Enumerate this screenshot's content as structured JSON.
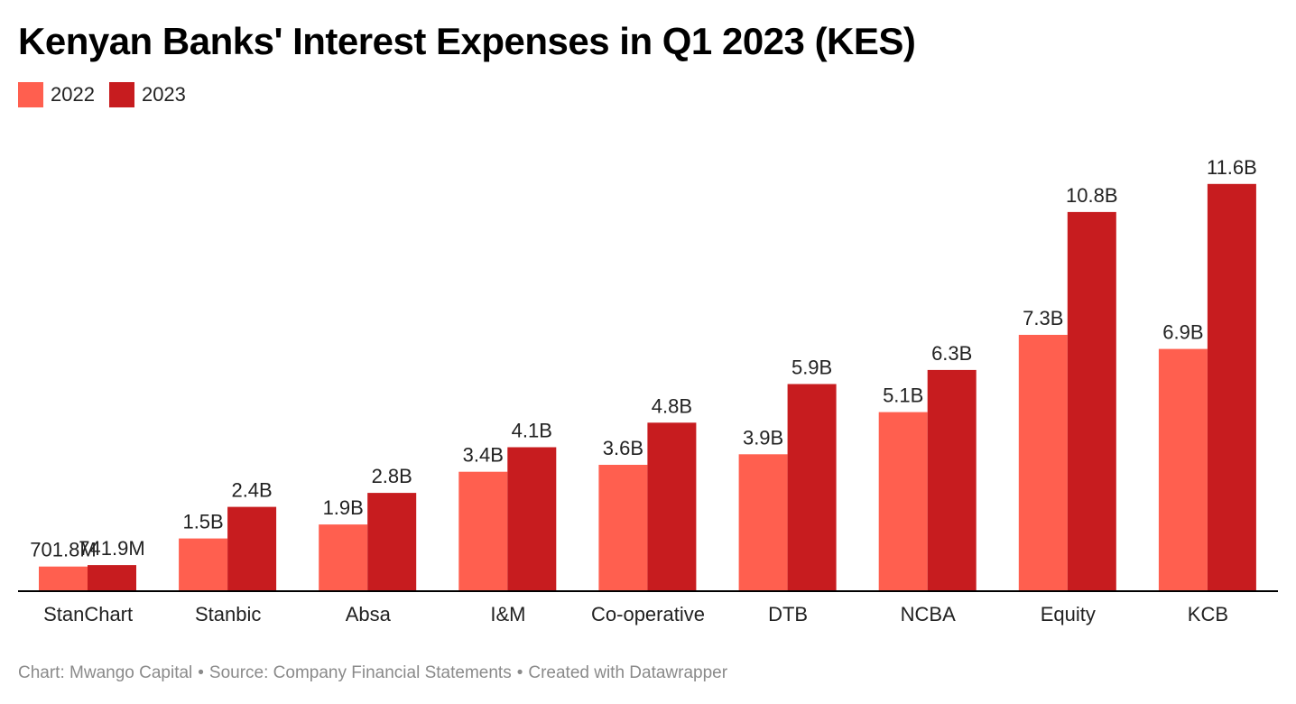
{
  "colors": {
    "series_2022": "#ff5f4f",
    "series_2023": "#c71c1f",
    "axis": "#000000",
    "footer_text": "#8a8a8a"
  },
  "footer": {
    "chart_by": "Chart: Mwango Capital",
    "source": "Source: Company Financial Statements",
    "created": "Created with Datawrapper",
    "separator": "•"
  },
  "chart_data": {
    "type": "bar",
    "title": "Kenyan Banks' Interest Expenses in Q1 2023 (KES)",
    "xlabel": "",
    "ylabel": "",
    "ylim": [
      0,
      12.5
    ],
    "unit": "KES billions",
    "grid": false,
    "legend_position": "top-left",
    "categories": [
      "StanChart",
      "Stanbic",
      "Absa",
      "I&M",
      "Co-operative",
      "DTB",
      "NCBA",
      "Equity",
      "KCB"
    ],
    "series": [
      {
        "name": "2022",
        "values": [
          0.7018,
          1.5,
          1.9,
          3.4,
          3.6,
          3.9,
          5.1,
          7.3,
          6.9
        ],
        "labels": [
          "701.8M",
          "1.5B",
          "1.9B",
          "3.4B",
          "3.6B",
          "3.9B",
          "5.1B",
          "7.3B",
          "6.9B"
        ]
      },
      {
        "name": "2023",
        "values": [
          0.7419,
          2.4,
          2.8,
          4.1,
          4.8,
          5.9,
          6.3,
          10.8,
          11.6
        ],
        "labels": [
          "741.9M",
          "2.4B",
          "2.8B",
          "4.1B",
          "4.8B",
          "5.9B",
          "6.3B",
          "10.8B",
          "11.6B"
        ]
      }
    ]
  }
}
